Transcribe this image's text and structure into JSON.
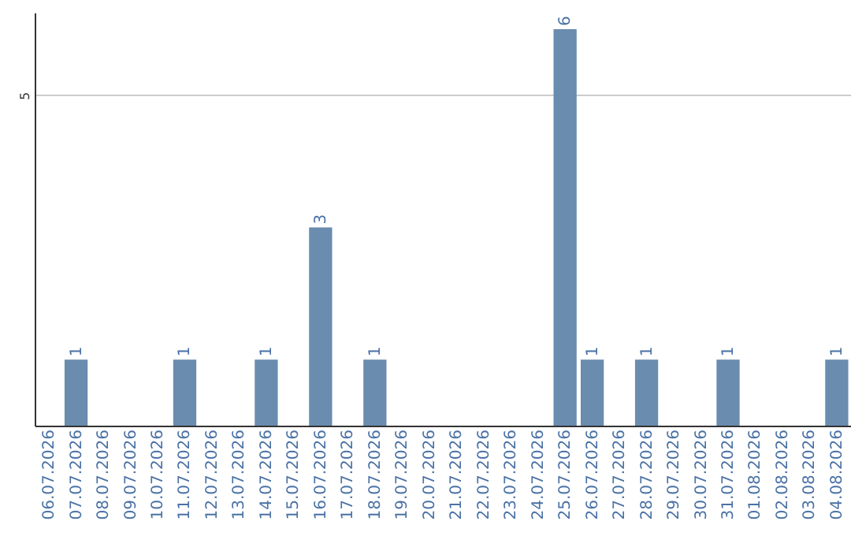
{
  "chart_data": {
    "type": "bar",
    "categories": [
      "06.07.2026",
      "07.07.2026",
      "08.07.2026",
      "09.07.2026",
      "10.07.2026",
      "11.07.2026",
      "12.07.2026",
      "13.07.2026",
      "14.07.2026",
      "15.07.2026",
      "16.07.2026",
      "17.07.2026",
      "18.07.2026",
      "19.07.2026",
      "20.07.2026",
      "21.07.2026",
      "22.07.2026",
      "23.07.2026",
      "24.07.2026",
      "25.07.2026",
      "26.07.2026",
      "27.07.2026",
      "28.07.2026",
      "29.07.2026",
      "30.07.2026",
      "31.07.2026",
      "01.08.2026",
      "02.08.2026",
      "03.08.2026",
      "04.08.2026"
    ],
    "values": [
      0,
      1,
      0,
      0,
      0,
      1,
      0,
      0,
      1,
      0,
      3,
      0,
      1,
      0,
      0,
      0,
      0,
      0,
      0,
      6,
      1,
      0,
      1,
      0,
      0,
      1,
      0,
      0,
      0,
      1
    ],
    "value_labels": [
      null,
      "1",
      null,
      null,
      null,
      "1",
      null,
      null,
      "1",
      null,
      "3",
      null,
      "1",
      null,
      null,
      null,
      null,
      null,
      null,
      "6",
      "1",
      null,
      "1",
      null,
      null,
      "1",
      null,
      null,
      null,
      "1"
    ],
    "color": "#6a8caf",
    "ylim": [
      0,
      6.25
    ],
    "yticks": [
      5
    ],
    "grid": "y"
  }
}
